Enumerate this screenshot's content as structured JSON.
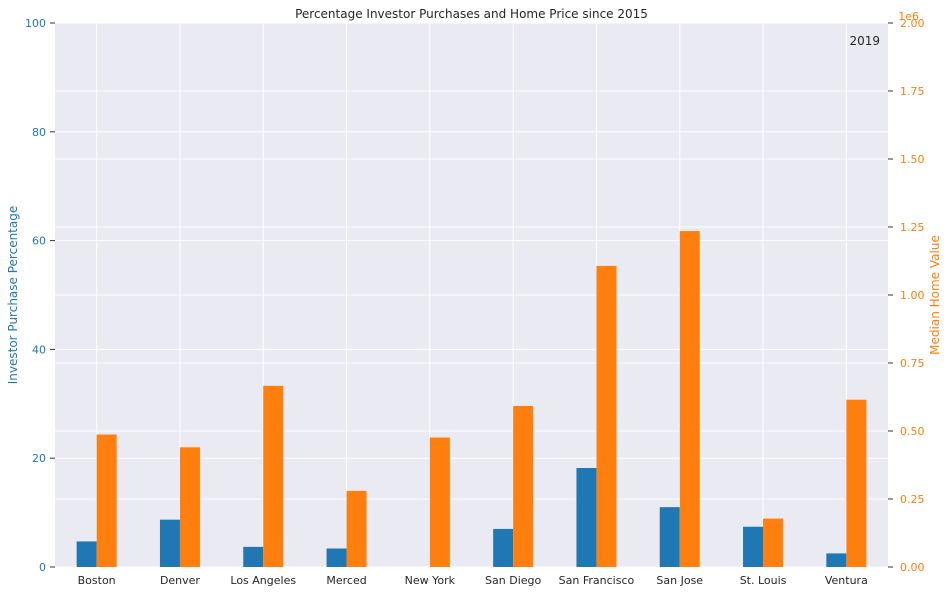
{
  "chart_data": {
    "type": "bar",
    "title": "Percentage Investor Purchases and Home Price since 2015",
    "annotation": "2019",
    "categories": [
      "Boston",
      "Denver",
      "Los Angeles",
      "Merced",
      "New York",
      "San Diego",
      "San Francisco",
      "San Jose",
      "St. Louis",
      "Ventura"
    ],
    "series": [
      {
        "name": "Investor Purchase Percentage",
        "axis": "left",
        "color": "#1f77b4",
        "values": [
          4.7,
          8.7,
          3.7,
          3.4,
          0,
          7.0,
          18.2,
          11.0,
          7.4,
          2.5
        ]
      },
      {
        "name": "Median Home Value",
        "axis": "right",
        "color": "#ff7f0e",
        "values": [
          487000,
          440000,
          666000,
          280000,
          476000,
          592000,
          1107000,
          1235000,
          178000,
          615000
        ]
      }
    ],
    "left_axis": {
      "label": "Investor Purchase Percentage",
      "color": "#1f77b4",
      "ylim": [
        0,
        100
      ],
      "ticks": [
        0,
        20,
        40,
        60,
        80,
        100
      ]
    },
    "right_axis": {
      "label": "Median Home Value",
      "color": "#ff7f0e",
      "ylim": [
        0,
        2000000
      ],
      "ticks": [
        0,
        250000,
        500000,
        750000,
        1000000,
        1250000,
        1500000,
        1750000,
        2000000
      ],
      "tick_labels": [
        "0.00",
        "0.25",
        "0.50",
        "0.75",
        "1.00",
        "1.25",
        "1.50",
        "1.75",
        "2.00"
      ],
      "offset_label": "1e6"
    },
    "grid": true,
    "background": "#eaeaf2"
  }
}
